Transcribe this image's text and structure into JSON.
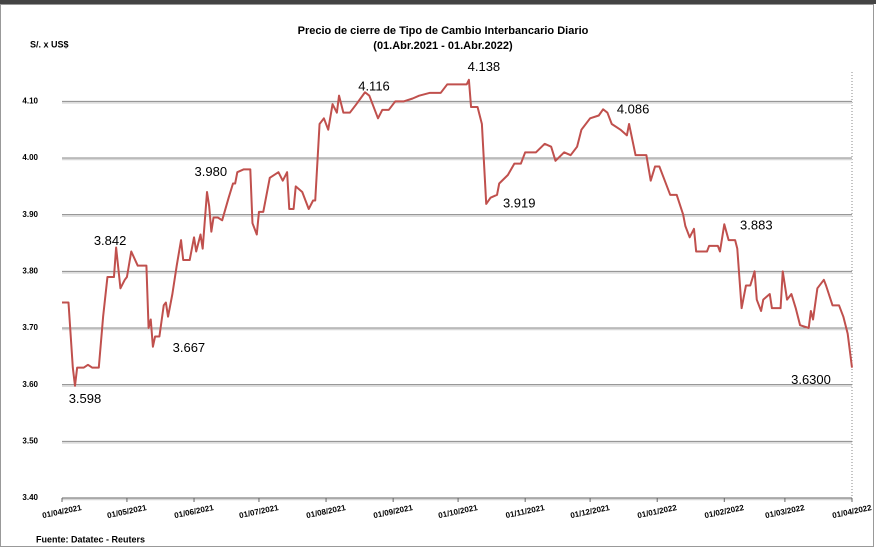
{
  "chart_data": {
    "type": "line",
    "title": "Precio de cierre de Tipo de Cambio Interbancario  Diario",
    "subtitle": "(01.Abr.2021 - 01.Abr.2022)",
    "y_label": "S/. x US$",
    "source": "Fuente: Datatec - Reuters",
    "grid": true,
    "ylim": [
      3.4,
      4.15
    ],
    "yticks": [
      {
        "value": 3.4,
        "label": "3.40"
      },
      {
        "value": 3.5,
        "label": "3.50"
      },
      {
        "value": 3.6,
        "label": "3.60"
      },
      {
        "value": 3.7,
        "label": "3.70"
      },
      {
        "value": 3.8,
        "label": "3.80"
      },
      {
        "value": 3.9,
        "label": "3.90"
      },
      {
        "value": 4.0,
        "label": "4.00"
      },
      {
        "value": 4.1,
        "label": "4.10"
      }
    ],
    "xlim": [
      "2021-04-01",
      "2022-04-01"
    ],
    "xticks": [
      {
        "value": "2021-04-01",
        "label": "01/04/2021"
      },
      {
        "value": "2021-05-01",
        "label": "01/05/2021"
      },
      {
        "value": "2021-06-01",
        "label": "01/06/2021"
      },
      {
        "value": "2021-07-01",
        "label": "01/07/2021"
      },
      {
        "value": "2021-08-01",
        "label": "01/08/2021"
      },
      {
        "value": "2021-09-01",
        "label": "01/09/2021"
      },
      {
        "value": "2021-10-01",
        "label": "01/10/2021"
      },
      {
        "value": "2021-11-01",
        "label": "01/11/2021"
      },
      {
        "value": "2021-12-01",
        "label": "01/12/2021"
      },
      {
        "value": "2022-01-01",
        "label": "01/01/2022"
      },
      {
        "value": "2022-02-01",
        "label": "01/02/2022"
      },
      {
        "value": "2022-03-01",
        "label": "01/03/2022"
      },
      {
        "value": "2022-04-01",
        "label": "01/04/2022"
      }
    ],
    "x": [
      "2021-04-01",
      "2021-04-04",
      "2021-04-06",
      "2021-04-07",
      "2021-04-08",
      "2021-04-11",
      "2021-04-13",
      "2021-04-15",
      "2021-04-18",
      "2021-04-20",
      "2021-04-22",
      "2021-04-25",
      "2021-04-26",
      "2021-04-28",
      "2021-04-30",
      "2021-05-01",
      "2021-05-03",
      "2021-05-06",
      "2021-05-10",
      "2021-05-11",
      "2021-05-12",
      "2021-05-13",
      "2021-05-14",
      "2021-05-16",
      "2021-05-18",
      "2021-05-19",
      "2021-05-20",
      "2021-05-22",
      "2021-05-24",
      "2021-05-26",
      "2021-05-27",
      "2021-05-30",
      "2021-06-01",
      "2021-06-02",
      "2021-06-04",
      "2021-06-05",
      "2021-06-07",
      "2021-06-08",
      "2021-06-09",
      "2021-06-10",
      "2021-06-12",
      "2021-06-14",
      "2021-06-17",
      "2021-06-19",
      "2021-06-20",
      "2021-06-21",
      "2021-06-24",
      "2021-06-27",
      "2021-06-28",
      "2021-06-30",
      "2021-07-01",
      "2021-07-03",
      "2021-07-06",
      "2021-07-10",
      "2021-07-12",
      "2021-07-14",
      "2021-07-15",
      "2021-07-17",
      "2021-07-18",
      "2021-07-21",
      "2021-07-24",
      "2021-07-26",
      "2021-07-27",
      "2021-07-29",
      "2021-07-31",
      "2021-08-02",
      "2021-08-04",
      "2021-08-06",
      "2021-08-07",
      "2021-08-09",
      "2021-08-12",
      "2021-08-15",
      "2021-08-19",
      "2021-08-21",
      "2021-08-25",
      "2021-08-27",
      "2021-08-30",
      "2021-09-02",
      "2021-09-06",
      "2021-09-10",
      "2021-09-13",
      "2021-09-18",
      "2021-09-23",
      "2021-09-26",
      "2021-09-30",
      "2021-10-05",
      "2021-10-06",
      "2021-10-07",
      "2021-10-10",
      "2021-10-12",
      "2021-10-14",
      "2021-10-16",
      "2021-10-19",
      "2021-10-20",
      "2021-10-24",
      "2021-10-27",
      "2021-10-30",
      "2021-11-01",
      "2021-11-06",
      "2021-11-10",
      "2021-11-13",
      "2021-11-15",
      "2021-11-19",
      "2021-11-22",
      "2021-11-25",
      "2021-11-27",
      "2021-12-01",
      "2021-12-05",
      "2021-12-07",
      "2021-12-09",
      "2021-12-11",
      "2021-12-15",
      "2021-12-18",
      "2021-12-19",
      "2021-12-22",
      "2021-12-27",
      "2021-12-29",
      "2021-12-31",
      "2022-01-02",
      "2022-01-04",
      "2022-01-07",
      "2022-01-10",
      "2022-01-13",
      "2022-01-14",
      "2022-01-16",
      "2022-01-18",
      "2022-01-19",
      "2022-01-24",
      "2022-01-25",
      "2022-01-29",
      "2022-01-30",
      "2022-02-01",
      "2022-02-03",
      "2022-02-06",
      "2022-02-07",
      "2022-02-09",
      "2022-02-11",
      "2022-02-13",
      "2022-02-15",
      "2022-02-16",
      "2022-02-18",
      "2022-02-19",
      "2022-02-22",
      "2022-02-23",
      "2022-02-25",
      "2022-02-27",
      "2022-02-28",
      "2022-03-02",
      "2022-03-04",
      "2022-03-06",
      "2022-03-08",
      "2022-03-12",
      "2022-03-13",
      "2022-03-14",
      "2022-03-16",
      "2022-03-19",
      "2022-03-20",
      "2022-03-23",
      "2022-03-26",
      "2022-03-28",
      "2022-03-30",
      "2022-04-01"
    ],
    "series": [
      {
        "color": "#c0504d",
        "values": [
          3.745,
          3.745,
          3.63,
          3.598,
          3.63,
          3.63,
          3.635,
          3.63,
          3.63,
          3.72,
          3.79,
          3.79,
          3.842,
          3.77,
          3.785,
          3.79,
          3.835,
          3.81,
          3.81,
          3.7,
          3.715,
          3.667,
          3.685,
          3.685,
          3.74,
          3.745,
          3.72,
          3.76,
          3.81,
          3.855,
          3.82,
          3.82,
          3.86,
          3.835,
          3.865,
          3.84,
          3.94,
          3.915,
          3.87,
          3.895,
          3.895,
          3.89,
          3.93,
          3.955,
          3.955,
          3.975,
          3.98,
          3.98,
          3.885,
          3.865,
          3.905,
          3.905,
          3.965,
          3.975,
          3.96,
          3.975,
          3.91,
          3.91,
          3.95,
          3.94,
          3.91,
          3.925,
          3.925,
          4.06,
          4.07,
          4.05,
          4.095,
          4.08,
          4.11,
          4.08,
          4.08,
          4.095,
          4.116,
          4.11,
          4.07,
          4.085,
          4.085,
          4.1,
          4.1,
          4.105,
          4.11,
          4.115,
          4.115,
          4.13,
          4.13,
          4.13,
          4.138,
          4.09,
          4.09,
          4.06,
          3.919,
          3.93,
          3.935,
          3.955,
          3.97,
          3.99,
          3.99,
          4.01,
          4.01,
          4.025,
          4.02,
          3.995,
          4.01,
          4.005,
          4.02,
          4.05,
          4.07,
          4.075,
          4.086,
          4.08,
          4.06,
          4.05,
          4.04,
          4.06,
          4.005,
          4.005,
          3.96,
          3.985,
          3.985,
          3.965,
          3.935,
          3.935,
          3.9,
          3.88,
          3.86,
          3.875,
          3.835,
          3.835,
          3.845,
          3.845,
          3.835,
          3.883,
          3.855,
          3.855,
          3.84,
          3.735,
          3.775,
          3.775,
          3.8,
          3.75,
          3.73,
          3.75,
          3.76,
          3.735,
          3.735,
          3.735,
          3.8,
          3.75,
          3.76,
          3.735,
          3.705,
          3.7,
          3.73,
          3.715,
          3.77,
          3.785,
          3.775,
          3.74,
          3.74,
          3.72,
          3.69,
          3.63
        ]
      }
    ],
    "annotations": [
      {
        "x": "2021-04-07",
        "value": 3.598,
        "label": "3.598"
      },
      {
        "x": "2021-04-26",
        "value": 3.842,
        "label": "3.842"
      },
      {
        "x": "2021-05-13",
        "value": 3.667,
        "label": "3.667"
      },
      {
        "x": "2021-06-24",
        "value": 3.98,
        "label": "3.980"
      },
      {
        "x": "2021-08-19",
        "value": 4.116,
        "label": "4.116"
      },
      {
        "x": "2021-10-06",
        "value": 4.138,
        "label": "4.138"
      },
      {
        "x": "2021-10-14",
        "value": 3.919,
        "label": "3.919"
      },
      {
        "x": "2021-12-07",
        "value": 4.086,
        "label": "4.086"
      },
      {
        "x": "2022-02-01",
        "value": 3.883,
        "label": "3.883"
      },
      {
        "x": "2022-04-01",
        "value": 3.63,
        "label": "3.6300"
      }
    ]
  }
}
